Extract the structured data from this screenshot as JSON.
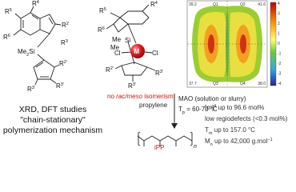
{
  "left_structure": {
    "r4": [
      {
        "text": "R"
      },
      {
        "text": "4",
        "style": "sup"
      }
    ],
    "r5": [
      {
        "text": "R"
      },
      {
        "text": "5",
        "style": "sup"
      }
    ],
    "r6": [
      {
        "text": "R"
      },
      {
        "text": "6",
        "style": "sup"
      }
    ],
    "r2": [
      {
        "text": "R"
      },
      {
        "text": "2",
        "style": "sup"
      }
    ],
    "me2si": [
      {
        "text": "Me"
      },
      {
        "text": "2",
        "style": "sub"
      },
      {
        "text": "Si"
      }
    ],
    "r2p": [
      {
        "text": "R"
      },
      {
        "text": "2'",
        "style": "sup"
      }
    ],
    "r3": [
      {
        "text": "R"
      },
      {
        "text": "3",
        "style": "sup"
      }
    ],
    "r3p": [
      {
        "text": "R"
      },
      {
        "text": "3'",
        "style": "sup"
      }
    ],
    "r3p_b": [
      {
        "text": "R"
      },
      {
        "text": "3'",
        "style": "sup"
      }
    ]
  },
  "complex": {
    "r4": [
      {
        "text": "R"
      },
      {
        "text": "4",
        "style": "sup"
      }
    ],
    "r5": [
      {
        "text": "R"
      },
      {
        "text": "5",
        "style": "sup"
      }
    ],
    "r6": [
      {
        "text": "R"
      },
      {
        "text": "6",
        "style": "sup"
      }
    ],
    "me": [
      {
        "text": "Me"
      }
    ],
    "si": [
      {
        "text": "Si"
      }
    ],
    "me_b": [
      {
        "text": "Me"
      }
    ],
    "cl_left": [
      {
        "text": "Cl"
      }
    ],
    "metal": [
      {
        "text": "M"
      }
    ],
    "cl_right": [
      {
        "text": "Cl"
      }
    ],
    "r2p": [
      {
        "text": "R"
      },
      {
        "text": "2'",
        "style": "sup"
      }
    ],
    "r3p": [
      {
        "text": "R"
      },
      {
        "text": "3'",
        "style": "sup"
      }
    ],
    "r3p_b": [
      {
        "text": "R"
      },
      {
        "text": "3'",
        "style": "sup"
      }
    ],
    "note": [
      {
        "text": "no "
      },
      {
        "text": "rac/meso",
        "style": "italic"
      },
      {
        "text": " isomerism"
      }
    ]
  },
  "contour_map": {
    "corners": [
      "39.2",
      "Q1",
      "Q2",
      "41.6",
      "37.7",
      "38.0",
      "Q3",
      "Q4"
    ],
    "colorbar_labels": [
      "4",
      "3",
      "2",
      "1",
      "0",
      "-1",
      "-2",
      "-3",
      "-4"
    ]
  },
  "studies": [
    "XRD, DFT studies",
    "\"chain-stationary\"",
    "polymerization mechanism"
  ],
  "conditions": {
    "monomer": [
      {
        "text": "propylene"
      }
    ],
    "cocatalyst": [
      {
        "text": "MAO (solution or slurry)"
      }
    ],
    "temperature": [
      {
        "text": "T"
      },
      {
        "text": "p",
        "style": "sub"
      },
      {
        "text": " = 60-70 °C"
      }
    ]
  },
  "polymer": {
    "repeat": [
      {
        "text": "n",
        "style": "italic"
      }
    ],
    "name": [
      {
        "text": "iPP"
      }
    ]
  },
  "properties": [
    [
      {
        "text": "["
      },
      {
        "text": "m",
        "style": "italic"
      },
      {
        "text": "]"
      },
      {
        "text": "4",
        "style": "sup"
      },
      {
        "text": " up to 96.6 mol%"
      }
    ],
    [
      {
        "text": "low regiodefects (<0.3 mol%)"
      }
    ],
    [
      {
        "text": "T"
      },
      {
        "text": "m",
        "style": "sub"
      },
      {
        "text": " up to 157.0 °C"
      }
    ],
    [
      {
        "text": "M"
      },
      {
        "text": "n",
        "style": "sub"
      },
      {
        "text": " up to 42,000 g.mol"
      },
      {
        "text": "−1",
        "style": "sup"
      }
    ]
  ]
}
